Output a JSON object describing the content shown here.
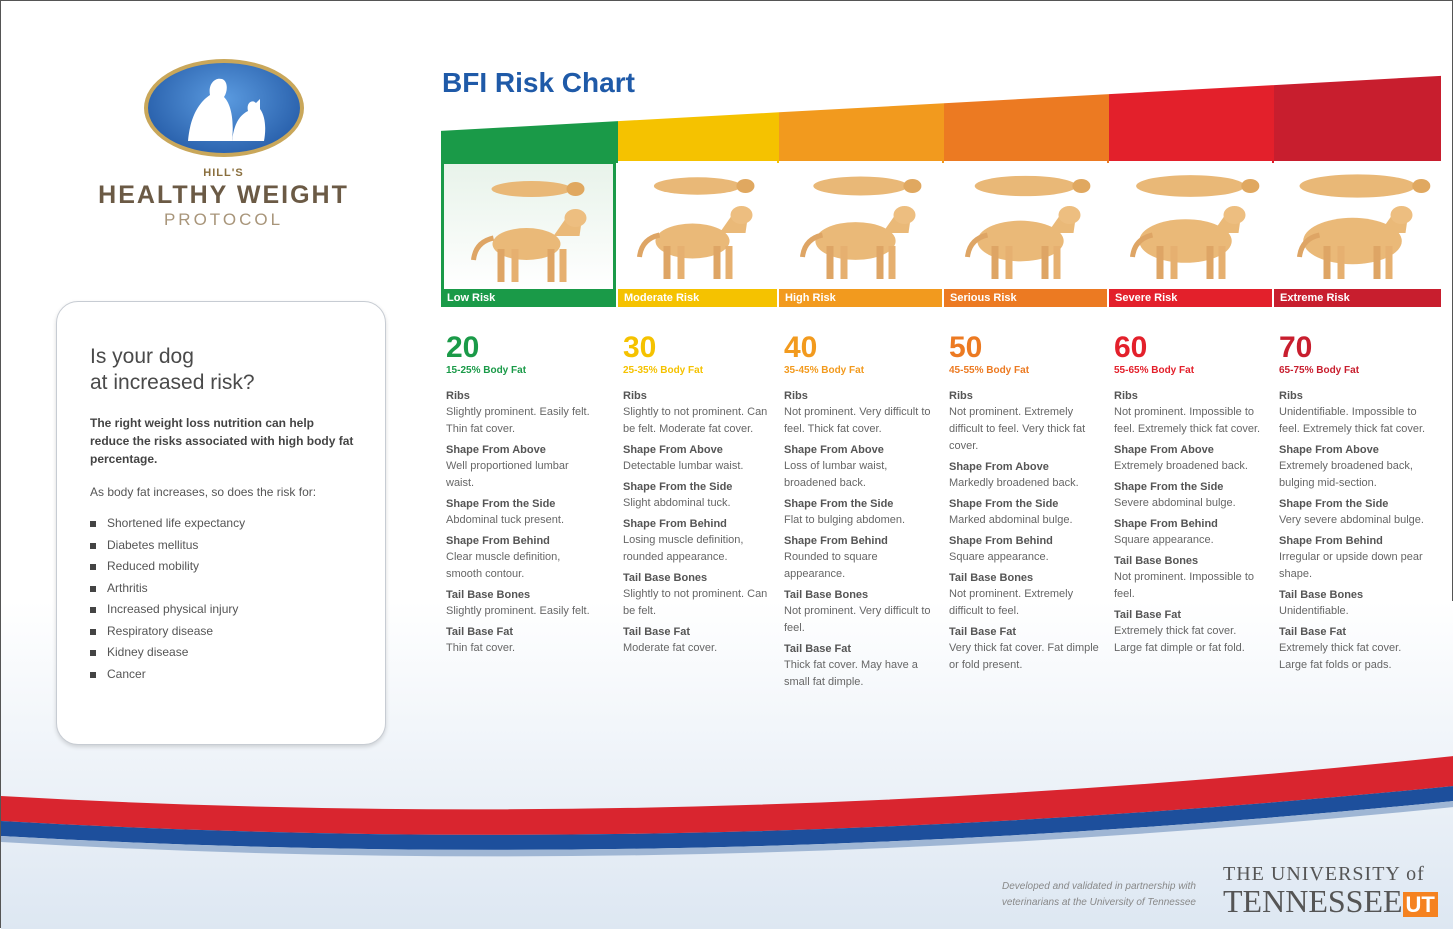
{
  "brand": {
    "small": "HILL'S",
    "big": "HEALTHY WEIGHT",
    "sub": "PROTOCOL"
  },
  "title": "BFI Risk Chart",
  "sidebar": {
    "heading_1": "Is your dog",
    "heading_2": "at increased risk?",
    "intro": "The right weight loss nutrition can help reduce the risks associated with high body fat percentage.",
    "lead": "As body fat increases, so does the risk for:",
    "risks": [
      "Shortened life expectancy",
      "Diabetes mellitus",
      "Reduced mobility",
      "Arthritis",
      "Increased physical injury",
      "Respiratory disease",
      "Kidney disease",
      "Cancer"
    ]
  },
  "columns": [
    {
      "risk": "Low Risk",
      "color": "#1a9a48",
      "bfi": "20",
      "range": "15-25% Body Fat",
      "selected": true,
      "sections": [
        [
          "Ribs",
          "Slightly prominent. Easily felt. Thin fat cover."
        ],
        [
          "Shape From Above",
          "Well proportioned lumbar waist."
        ],
        [
          "Shape From the Side",
          "Abdominal tuck present."
        ],
        [
          "Shape From Behind",
          "Clear muscle definition, smooth contour."
        ],
        [
          "Tail Base Bones",
          "Slightly prominent. Easily felt."
        ],
        [
          "Tail Base Fat",
          "Thin fat cover."
        ]
      ]
    },
    {
      "risk": "Moderate Risk",
      "color": "#f5c200",
      "bfi": "30",
      "range": "25-35% Body Fat",
      "sections": [
        [
          "Ribs",
          "Slightly to not prominent. Can be felt. Moderate fat cover."
        ],
        [
          "Shape From Above",
          "Detectable lumbar waist."
        ],
        [
          "Shape From the Side",
          "Slight abdominal tuck."
        ],
        [
          "Shape From Behind",
          "Losing muscle definition, rounded appearance."
        ],
        [
          "Tail Base Bones",
          "Slightly to not prominent. Can be felt."
        ],
        [
          "Tail Base Fat",
          "Moderate fat cover."
        ]
      ]
    },
    {
      "risk": "High Risk",
      "color": "#f29a1e",
      "bfi": "40",
      "range": "35-45% Body Fat",
      "sections": [
        [
          "Ribs",
          "Not prominent. Very difficult to feel. Thick fat cover."
        ],
        [
          "Shape From Above",
          "Loss of lumbar waist, broadened back."
        ],
        [
          "Shape From the Side",
          "Flat to bulging abdomen."
        ],
        [
          "Shape From Behind",
          "Rounded to square appearance."
        ],
        [
          "Tail Base Bones",
          "Not prominent. Very difficult to feel."
        ],
        [
          "Tail Base Fat",
          "Thick fat cover. May have a small fat dimple."
        ]
      ]
    },
    {
      "risk": "Serious Risk",
      "color": "#ec7a22",
      "bfi": "50",
      "range": "45-55% Body Fat",
      "sections": [
        [
          "Ribs",
          "Not prominent. Extremely difficult to feel. Very thick fat cover."
        ],
        [
          "Shape From Above",
          "Markedly broadened back."
        ],
        [
          "Shape From the Side",
          "Marked abdominal bulge."
        ],
        [
          "Shape From Behind",
          "Square appearance."
        ],
        [
          "Tail Base Bones",
          "Not prominent. Extremely difficult to feel."
        ],
        [
          "Tail Base Fat",
          "Very thick fat cover. Fat dimple or fold present."
        ]
      ]
    },
    {
      "risk": "Severe Risk",
      "color": "#e3202b",
      "bfi": "60",
      "range": "55-65% Body Fat",
      "sections": [
        [
          "Ribs",
          "Not prominent. Impossible to feel. Extremely thick fat cover."
        ],
        [
          "Shape From Above",
          "Extremely broadened back."
        ],
        [
          "Shape From the Side",
          "Severe abdominal bulge."
        ],
        [
          "Shape From Behind",
          "Square appearance."
        ],
        [
          "Tail Base Bones",
          "Not prominent. Impossible to feel."
        ],
        [
          "Tail Base Fat",
          "Extremely thick fat cover. Large fat dimple or fat fold."
        ]
      ]
    },
    {
      "risk": "Extreme Risk",
      "color": "#c81e2e",
      "bfi": "70",
      "range": "65-75% Body Fat",
      "sections": [
        [
          "Ribs",
          "Unidentifiable. Impossible to feel. Extremely thick fat cover."
        ],
        [
          "Shape From Above",
          "Extremely broadened back, bulging mid-section."
        ],
        [
          "Shape From the Side",
          "Very severe abdominal bulge."
        ],
        [
          "Shape From Behind",
          "Irregular or upside down pear shape."
        ],
        [
          "Tail Base Bones",
          "Unidentifiable."
        ],
        [
          "Tail Base Fat",
          "Extremely thick fat cover. Large fat folds or pads."
        ]
      ]
    }
  ],
  "footer": {
    "note": "Developed and validated in partnership with veterinarians at the University of Tennessee",
    "ut_1": "THE UNIVERSITY of",
    "ut_2": "TENNESSEE",
    "ut_mark": "UT"
  }
}
